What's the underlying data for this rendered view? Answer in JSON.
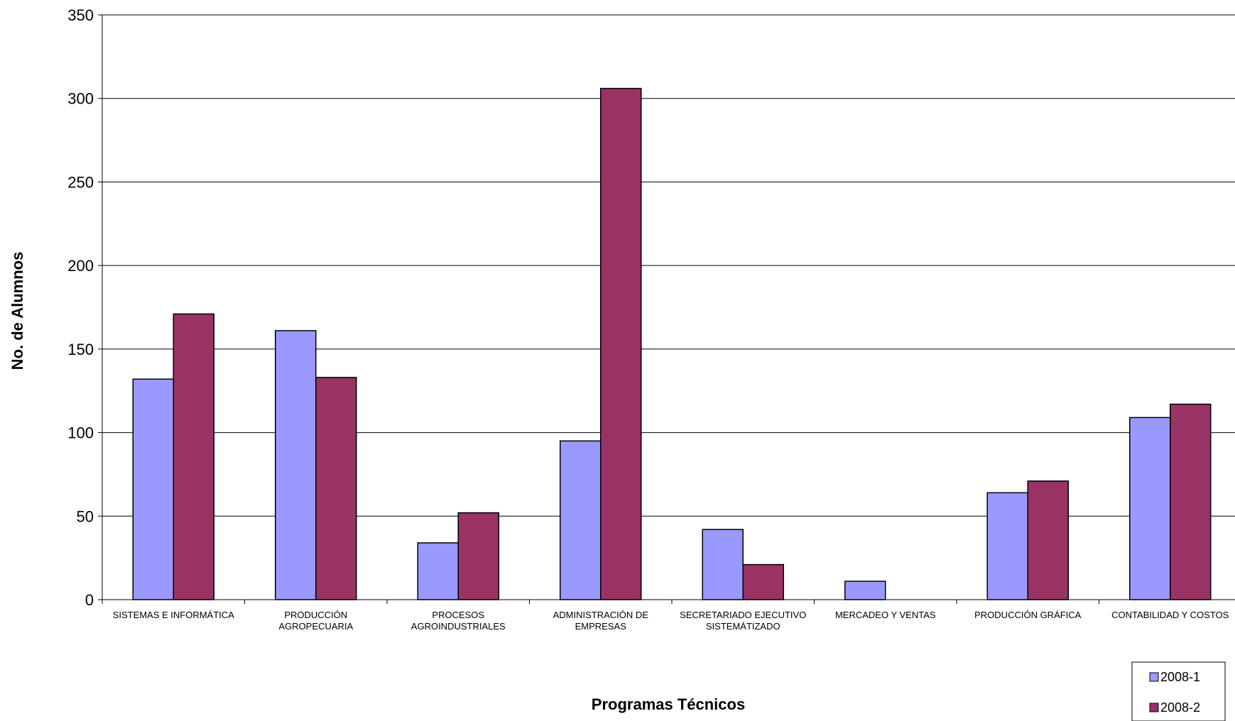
{
  "chart_data": {
    "type": "bar",
    "title": "",
    "xlabel": "Programas Técnicos",
    "ylabel": "No. de Alumnos",
    "ylim": [
      0,
      350
    ],
    "yticks": [
      0,
      50,
      100,
      150,
      200,
      250,
      300,
      350
    ],
    "grid": true,
    "legend_position": "bottom-right",
    "categories": [
      [
        "SISTEMAS E INFORMÁTICA"
      ],
      [
        "PRODUCCIÓN",
        "AGROPECUARIA"
      ],
      [
        "PROCESOS",
        "AGROINDUSTRIALES"
      ],
      [
        "ADMINISTRACIÓN DE",
        "EMPRESAS"
      ],
      [
        "SECRETARIADO EJECUTIVO",
        "SISTEMÁTIZADO"
      ],
      [
        "MERCADEO Y VENTAS"
      ],
      [
        "PRODUCCIÓN GRÁFICA"
      ],
      [
        "CONTABILIDAD Y COSTOS"
      ]
    ],
    "series": [
      {
        "name": "2008-1",
        "color": "#9999ff",
        "values": [
          132,
          161,
          34,
          95,
          42,
          11,
          64,
          109
        ]
      },
      {
        "name": "2008-2",
        "color": "#993366",
        "values": [
          171,
          133,
          52,
          306,
          21,
          0,
          71,
          117
        ]
      }
    ]
  }
}
